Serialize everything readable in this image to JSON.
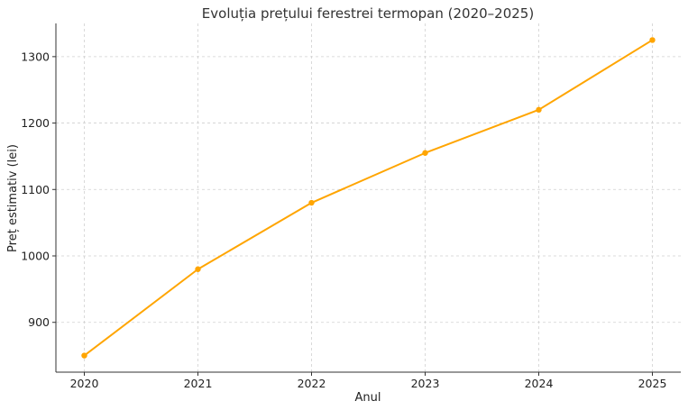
{
  "chart_data": {
    "type": "line",
    "title": "Evoluția prețului ferestrei termopan (2020–2025)",
    "xlabel": "Anul",
    "ylabel": "Preț estimativ (lei)",
    "x": [
      2020,
      2021,
      2022,
      2023,
      2024,
      2025
    ],
    "x_tick_labels": [
      "2020",
      "2021",
      "2022",
      "2023",
      "2024",
      "2025"
    ],
    "y_ticks": [
      900,
      1000,
      1100,
      1200,
      1300
    ],
    "y_tick_labels": [
      "900",
      "1000",
      "1100",
      "1200",
      "1300"
    ],
    "series": [
      {
        "values": [
          850,
          980,
          1080,
          1155,
          1220,
          1325
        ],
        "color": "#FFA500",
        "marker": "circle"
      }
    ],
    "xlim": [
      2019.75,
      2025.25
    ],
    "ylim": [
      825,
      1350
    ],
    "grid": true,
    "legend": "none"
  }
}
